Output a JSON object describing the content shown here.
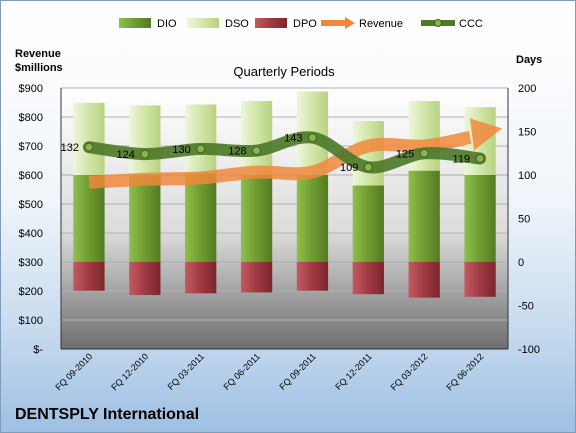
{
  "company": "DENTSPLY International",
  "chart_data": {
    "type": "bar",
    "title": "Quarterly Periods",
    "left_axis_label": [
      "Revenue",
      "$millions"
    ],
    "right_axis_label": "Days",
    "categories": [
      "FQ 09-2010",
      "FQ 12-2010",
      "FQ 03-2011",
      "FQ 06-2011",
      "FQ 09-2011",
      "FQ 12-2011",
      "FQ 03-2012",
      "FQ 06-2012"
    ],
    "left_ticks": [
      "$900",
      "$800",
      "$700",
      "$600",
      "$500",
      "$400",
      "$300",
      "$200",
      "$100",
      "$-"
    ],
    "right_ticks": [
      "200",
      "150",
      "100",
      "50",
      "0",
      "-50",
      "-100"
    ],
    "ylim_left": [
      0,
      900
    ],
    "ylim_days": [
      -100,
      200
    ],
    "legend_position": "top",
    "series": [
      {
        "name": "DIO",
        "kind": "stacked-bar",
        "color": "#77a33b",
        "values": [
          100,
          100,
          102,
          100,
          100,
          88,
          105,
          100
        ]
      },
      {
        "name": "DSO",
        "kind": "stacked-bar",
        "color": "#d8ebb5",
        "values": [
          83,
          80,
          79,
          85,
          96,
          74,
          80,
          78
        ]
      },
      {
        "name": "DPO",
        "kind": "stacked-bar",
        "color": "#a8424a",
        "values": [
          -33,
          -38,
          -36,
          -35,
          -33,
          -37,
          -41,
          -40
        ]
      },
      {
        "name": "Revenue",
        "kind": "arrow",
        "axis": "left",
        "color": "#f0883c",
        "values": [
          575,
          585,
          590,
          610,
          610,
          700,
          700,
          740
        ]
      },
      {
        "name": "CCC",
        "kind": "line",
        "axis": "right",
        "color": "#4e7a2a",
        "values": [
          132,
          124,
          130,
          128,
          143,
          109,
          125,
          119
        ]
      }
    ],
    "data_labels": [
      "132",
      "124",
      "130",
      "128",
      "143",
      "109",
      "125",
      "119"
    ]
  }
}
